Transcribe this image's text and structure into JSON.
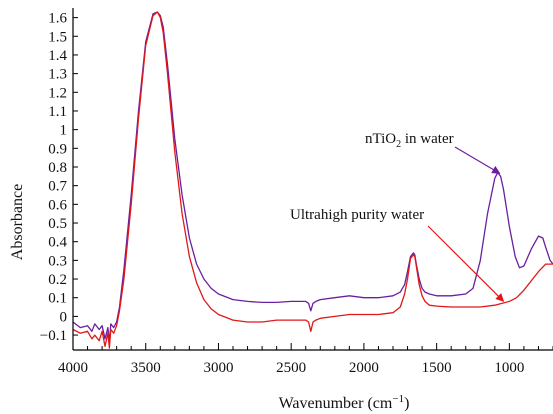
{
  "chart_data": {
    "type": "line",
    "xlabel": "Wavenumber (cm⁻¹)",
    "xlabel_main": "Wavenumber (cm",
    "xlabel_sup": "−1",
    "xlabel_close": ")",
    "ylabel": "Absorbance",
    "xlim": [
      4000,
      700
    ],
    "ylim": [
      -0.18,
      1.63
    ],
    "x_reversed": true,
    "grid": false,
    "legend": "none",
    "x_ticks": [
      4000,
      3500,
      3000,
      2500,
      2000,
      1500,
      1000
    ],
    "x_tick_labels": [
      "4000",
      "3500",
      "3000",
      "2500",
      "2000",
      "1500",
      "1000"
    ],
    "y_ticks": [
      -0.1,
      0,
      0.1,
      0.2,
      0.3,
      0.4,
      0.5,
      0.6,
      0.7,
      0.8,
      0.9,
      1,
      1.1,
      1.2,
      1.3,
      1.4,
      1.5,
      1.6
    ],
    "y_tick_labels": [
      "−0.1",
      "0",
      "0.1",
      "0.2",
      "0.3",
      "0.4",
      "0.5",
      "0.6",
      "0.7",
      "0.8",
      "0.9",
      "1",
      "1.1",
      "1.2",
      "1.3",
      "1.4",
      "1.5",
      "1.6"
    ],
    "series": [
      {
        "color": "#6a1fa0",
        "x": [
          4000,
          3950,
          3900,
          3870,
          3850,
          3820,
          3800,
          3780,
          3760,
          3750,
          3740,
          3720,
          3700,
          3680,
          3650,
          3600,
          3550,
          3500,
          3450,
          3420,
          3400,
          3380,
          3350,
          3300,
          3250,
          3200,
          3150,
          3100,
          3050,
          3000,
          2900,
          2800,
          2700,
          2600,
          2500,
          2400,
          2380,
          2365,
          2350,
          2330,
          2300,
          2200,
          2100,
          2000,
          1900,
          1800,
          1750,
          1720,
          1700,
          1680,
          1660,
          1650,
          1640,
          1620,
          1600,
          1580,
          1550,
          1500,
          1400,
          1300,
          1250,
          1200,
          1150,
          1100,
          1080,
          1060,
          1040,
          1000,
          960,
          930,
          900,
          850,
          800,
          770,
          750,
          720,
          700
        ],
        "y": [
          -0.03,
          -0.06,
          -0.05,
          -0.08,
          -0.04,
          -0.07,
          -0.05,
          -0.12,
          -0.06,
          -0.14,
          -0.04,
          -0.06,
          -0.03,
          0.05,
          0.25,
          0.65,
          1.1,
          1.47,
          1.62,
          1.63,
          1.61,
          1.55,
          1.35,
          0.95,
          0.65,
          0.42,
          0.28,
          0.2,
          0.15,
          0.12,
          0.09,
          0.08,
          0.075,
          0.075,
          0.08,
          0.08,
          0.07,
          0.03,
          0.07,
          0.08,
          0.09,
          0.1,
          0.11,
          0.1,
          0.1,
          0.11,
          0.13,
          0.17,
          0.24,
          0.32,
          0.34,
          0.33,
          0.28,
          0.2,
          0.15,
          0.13,
          0.12,
          0.11,
          0.11,
          0.12,
          0.15,
          0.3,
          0.55,
          0.74,
          0.77,
          0.75,
          0.68,
          0.48,
          0.32,
          0.26,
          0.27,
          0.36,
          0.43,
          0.42,
          0.37,
          0.3,
          0.28
        ]
      },
      {
        "color": "#e01818",
        "x": [
          4000,
          3950,
          3900,
          3870,
          3850,
          3820,
          3800,
          3780,
          3760,
          3750,
          3740,
          3720,
          3700,
          3680,
          3650,
          3600,
          3550,
          3500,
          3450,
          3420,
          3400,
          3380,
          3350,
          3300,
          3250,
          3200,
          3150,
          3100,
          3050,
          3000,
          2900,
          2800,
          2700,
          2600,
          2500,
          2400,
          2380,
          2365,
          2350,
          2330,
          2300,
          2200,
          2100,
          2000,
          1900,
          1800,
          1750,
          1720,
          1700,
          1680,
          1660,
          1650,
          1640,
          1620,
          1600,
          1580,
          1550,
          1500,
          1400,
          1300,
          1200,
          1100,
          1000,
          950,
          900,
          850,
          800,
          750,
          700
        ],
        "y": [
          -0.07,
          -0.09,
          -0.08,
          -0.12,
          -0.1,
          -0.13,
          -0.08,
          -0.16,
          -0.09,
          -0.17,
          -0.07,
          -0.09,
          -0.05,
          0.03,
          0.2,
          0.6,
          1.06,
          1.45,
          1.61,
          1.63,
          1.6,
          1.52,
          1.3,
          0.88,
          0.55,
          0.32,
          0.18,
          0.09,
          0.04,
          0.01,
          -0.02,
          -0.03,
          -0.03,
          -0.02,
          -0.02,
          -0.02,
          -0.03,
          -0.08,
          -0.03,
          -0.02,
          -0.01,
          0.0,
          0.01,
          0.01,
          0.01,
          0.02,
          0.05,
          0.12,
          0.2,
          0.31,
          0.33,
          0.32,
          0.27,
          0.17,
          0.11,
          0.08,
          0.06,
          0.055,
          0.05,
          0.05,
          0.05,
          0.06,
          0.08,
          0.1,
          0.14,
          0.19,
          0.24,
          0.28,
          0.28
        ]
      }
    ],
    "annotations": [
      {
        "text_main": "nTiO",
        "text_sub": "2",
        "text_rest": " in water",
        "color": "#6a1fa0",
        "arrow_to": [
          1080,
          0.75
        ]
      },
      {
        "text": "Ultrahigh purity water",
        "color": "#e01818",
        "arrow_to": [
          1040,
          0.07
        ]
      }
    ]
  }
}
